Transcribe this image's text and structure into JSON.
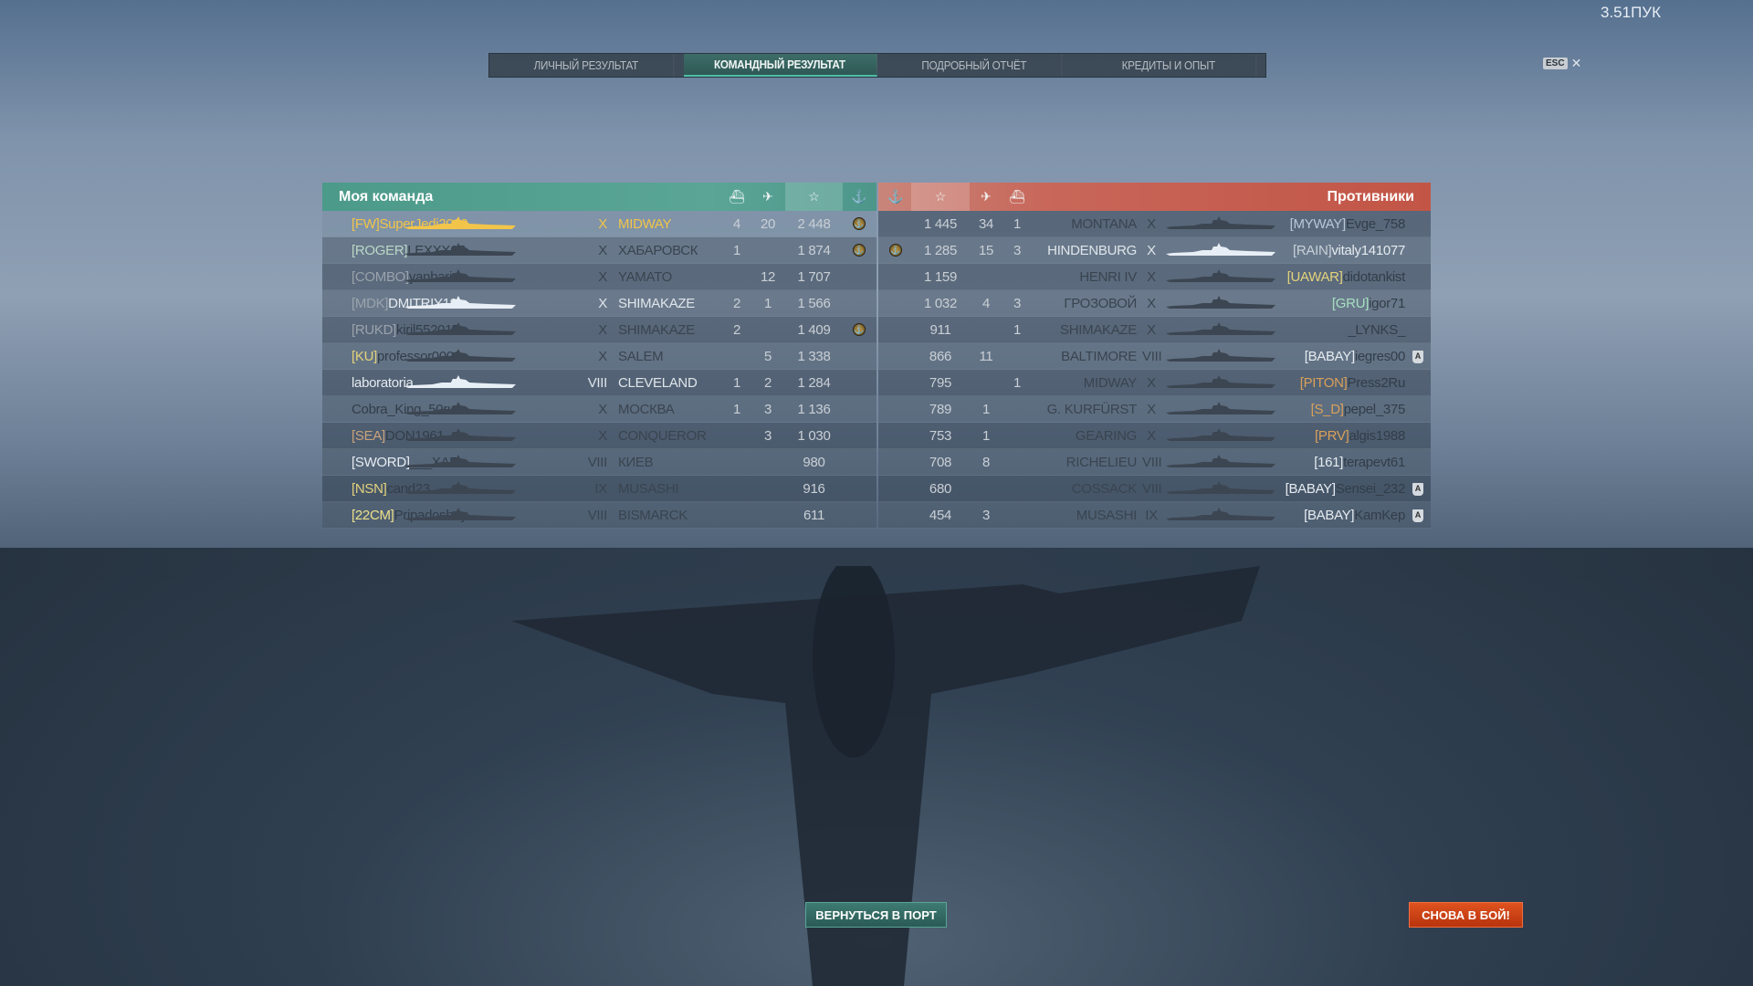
{
  "ping": "3.51ПУК",
  "esc_label": "ESC",
  "tabs": [
    {
      "label": "ЛИЧНЫЙ РЕЗУЛЬТАТ",
      "active": false
    },
    {
      "label": "КОМАНДНЫЙ РЕЗУЛЬТАТ",
      "active": true
    },
    {
      "label": "ПОДРОБНЫЙ ОТЧЁТ",
      "active": false
    },
    {
      "label": "КРЕДИТЫ И ОПЫТ",
      "active": false
    }
  ],
  "colors": {
    "my_team": "#4c9a8a",
    "enemy_team": "#c8675a",
    "self": "#f2c54a",
    "alive_name": "#e6ebf0",
    "dead_name": "#323d49"
  },
  "my_team": {
    "title": "Моя команда",
    "columns": [
      "ships-destroyed-icon",
      "planes-destroyed-icon",
      "star-icon",
      "anchor-medal-icon"
    ],
    "rows": [
      {
        "clan": "[FW]",
        "clan_color": "#f2c54a",
        "name": "SuperJedi2009",
        "self": true,
        "alive": true,
        "tier": "X",
        "ship": "MIDWAY",
        "kills": "4",
        "planes": "20",
        "xp": "2 448",
        "medal": true
      },
      {
        "clan": "[ROGER]",
        "clan_color": "#b9d8c6",
        "name": "LEXXX67",
        "alive": false,
        "tier": "X",
        "ship": "ХАБАРОВСК",
        "kills": "1",
        "planes": "",
        "xp": "1 874",
        "medal": true
      },
      {
        "clan": "[COMBO]",
        "clan_color": "#9aa3ac",
        "name": "yanbaris...",
        "alive": false,
        "tier": "X",
        "ship": "YAMATO",
        "kills": "",
        "planes": "12",
        "xp": "1 707",
        "medal": false
      },
      {
        "clan": "[MDK]",
        "clan_color": "#9aa3ac",
        "name": "DMITRIY19...",
        "alive": true,
        "tier": "X",
        "ship": "SHIMAKAZE",
        "kills": "2",
        "planes": "1",
        "xp": "1 566",
        "medal": false
      },
      {
        "clan": "[RUKD]",
        "clan_color": "#9aa3ac",
        "name": "kiril552017",
        "alive": false,
        "tier": "X",
        "ship": "SHIMAKAZE",
        "kills": "2",
        "planes": "",
        "xp": "1 409",
        "medal": true
      },
      {
        "clan": "[KU]",
        "clan_color": "#e3d27c",
        "name": "professor0002",
        "alive": false,
        "tier": "X",
        "ship": "SALEM",
        "kills": "",
        "planes": "5",
        "xp": "1 338",
        "medal": false
      },
      {
        "clan": "",
        "clan_color": "#ffffff",
        "name": "laboratoria",
        "alive": true,
        "tier": "VIII",
        "ship": "CLEVELAND",
        "kills": "1",
        "planes": "2",
        "xp": "1 284",
        "medal": false
      },
      {
        "clan": "",
        "clan_color": "#ffffff",
        "name": "Cobra_King_50rus",
        "alive": false,
        "tier": "X",
        "ship": "МОСКВА",
        "kills": "1",
        "planes": "3",
        "xp": "1 136",
        "medal": false
      },
      {
        "clan": "[SEA]",
        "clan_color": "#c9a27a",
        "name": "DON1961",
        "alive": false,
        "tier": "X",
        "ship": "CONQUEROR",
        "kills": "",
        "planes": "3",
        "xp": "1 030",
        "medal": false
      },
      {
        "clan": "[SWORD]",
        "clan_color": "#e6ebf0",
        "name": "___XAR...",
        "alive": false,
        "tier": "VIII",
        "ship": "КИЕВ",
        "kills": "",
        "planes": "",
        "xp": "980",
        "medal": false
      },
      {
        "clan": "[NSN]",
        "clan_color": "#e3d27c",
        "name": "cand23",
        "alive": false,
        "tier": "IX",
        "ship": "MUSASHI",
        "kills": "",
        "planes": "",
        "xp": "916",
        "medal": false
      },
      {
        "clan": "[22CM]",
        "clan_color": "#ece08a",
        "name": "Pripadoshny",
        "alive": false,
        "tier": "VIII",
        "ship": "BISMARCK",
        "kills": "",
        "planes": "",
        "xp": "611",
        "medal": false
      }
    ]
  },
  "enemy_team": {
    "title": "Противники",
    "columns": [
      "anchor-medal-icon",
      "star-icon",
      "planes-destroyed-icon",
      "ships-destroyed-icon"
    ],
    "rows": [
      {
        "clan": "[MYWAY]",
        "clan_color": "#b8c8d8",
        "name": "Evge_758",
        "alive": false,
        "tier": "X",
        "ship": "MONTANA",
        "kills": "1",
        "planes": "34",
        "xp": "1 445",
        "medal": false,
        "badge": false
      },
      {
        "clan": "[RAIN]",
        "clan_color": "#c8d0d8",
        "name": "vitaly141077",
        "alive": true,
        "tier": "X",
        "ship": "HINDENBURG",
        "kills": "3",
        "planes": "15",
        "xp": "1 285",
        "medal": true,
        "badge": false
      },
      {
        "clan": "[UAWAR]",
        "clan_color": "#e3d27c",
        "name": "didotankist",
        "alive": false,
        "tier": "X",
        "ship": "HENRI IV",
        "kills": "",
        "planes": "",
        "xp": "1 159",
        "medal": false,
        "badge": false
      },
      {
        "clan": "[GRU]",
        "clan_color": "#a6e0c0",
        "name": "igor71",
        "alive": false,
        "tier": "X",
        "ship": "ГРОЗОВОЙ",
        "kills": "3",
        "planes": "4",
        "xp": "1 032",
        "medal": false,
        "badge": false
      },
      {
        "clan": "",
        "clan_color": "#ffffff",
        "name": "_LYNKS_",
        "alive": false,
        "tier": "X",
        "ship": "SHIMAKAZE",
        "kills": "1",
        "planes": "",
        "xp": "911",
        "medal": false,
        "badge": false
      },
      {
        "clan": "[BABAY]",
        "clan_color": "#e6ebf0",
        "name": "iegres00",
        "alive": false,
        "tier": "VIII",
        "ship": "BALTIMORE",
        "kills": "",
        "planes": "11",
        "xp": "866",
        "medal": false,
        "badge": true
      },
      {
        "clan": "[PITON]",
        "clan_color": "#d9a05a",
        "name": "Press2Ru",
        "alive": false,
        "tier": "X",
        "ship": "MIDWAY",
        "kills": "1",
        "planes": "",
        "xp": "795",
        "medal": false,
        "badge": false
      },
      {
        "clan": "[S_D]",
        "clan_color": "#d9a05a",
        "name": "pepel_375",
        "alive": false,
        "tier": "X",
        "ship": "G. KURFÜRST",
        "kills": "",
        "planes": "1",
        "xp": "789",
        "medal": false,
        "badge": false
      },
      {
        "clan": "[PRV]",
        "clan_color": "#d9a05a",
        "name": "algis1988",
        "alive": false,
        "tier": "X",
        "ship": "GEARING",
        "kills": "",
        "planes": "1",
        "xp": "753",
        "medal": false,
        "badge": false
      },
      {
        "clan": "[161]",
        "clan_color": "#e6ebf0",
        "name": "terapevt61",
        "alive": false,
        "tier": "VIII",
        "ship": "RICHELIEU",
        "kills": "",
        "planes": "8",
        "xp": "708",
        "medal": false,
        "badge": false
      },
      {
        "clan": "[BABAY]",
        "clan_color": "#e6ebf0",
        "name": "Sensei_232",
        "alive": false,
        "tier": "VIII",
        "ship": "COSSACK",
        "kills": "",
        "planes": "",
        "xp": "680",
        "medal": false,
        "badge": true
      },
      {
        "clan": "[BABAY]",
        "clan_color": "#e6ebf0",
        "name": "KamKep",
        "alive": false,
        "tier": "IX",
        "ship": "MUSASHI",
        "kills": "",
        "planes": "3",
        "xp": "454",
        "medal": false,
        "badge": true
      }
    ]
  },
  "buttons": {
    "back_to_port": "ВЕРНУТЬСЯ В ПОРТ",
    "battle_again": "СНОВА В БОЙ!"
  },
  "badge_letter": "A",
  "icon_glyphs": {
    "star": "☆",
    "planes": "✈",
    "kills": "⛴",
    "medal": "⚓"
  }
}
